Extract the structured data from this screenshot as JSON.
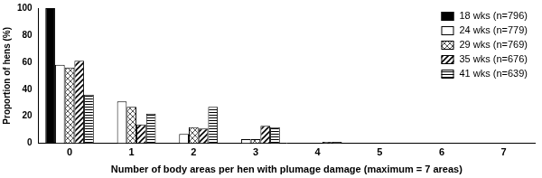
{
  "chart_data": {
    "type": "bar",
    "y_label": "Proportion of hens (%)",
    "x_label": "Number of body areas per hen with plumage damage (maximum = 7 areas)",
    "categories": [
      "0",
      "1",
      "2",
      "3",
      "4",
      "5",
      "6",
      "7"
    ],
    "series": [
      {
        "name": "18 wks (n=796)",
        "color": "#000000",
        "values": [
          100,
          0,
          0,
          0,
          0,
          0,
          0,
          0
        ]
      },
      {
        "name": "24 wks (n=779)",
        "color": "#ffffff",
        "values": [
          58,
          31,
          7,
          3,
          0,
          0,
          0,
          0
        ]
      },
      {
        "name": "29 wks (n=769)",
        "color": "#ffffff",
        "values": [
          56,
          27,
          12,
          3,
          0,
          0,
          0,
          0
        ]
      },
      {
        "name": "35 wks (n=676)",
        "color": "#ffffff",
        "values": [
          61,
          14,
          11,
          13,
          1,
          0,
          0,
          0
        ]
      },
      {
        "name": "41 wks (n=639)",
        "color": "#ffffff",
        "values": [
          36,
          22,
          27,
          12,
          1,
          0,
          0,
          0
        ]
      }
    ],
    "ylim": [
      0,
      100
    ],
    "yticks": [
      0,
      20,
      40,
      60,
      80,
      100
    ],
    "grid": false,
    "legend": "upper right"
  }
}
